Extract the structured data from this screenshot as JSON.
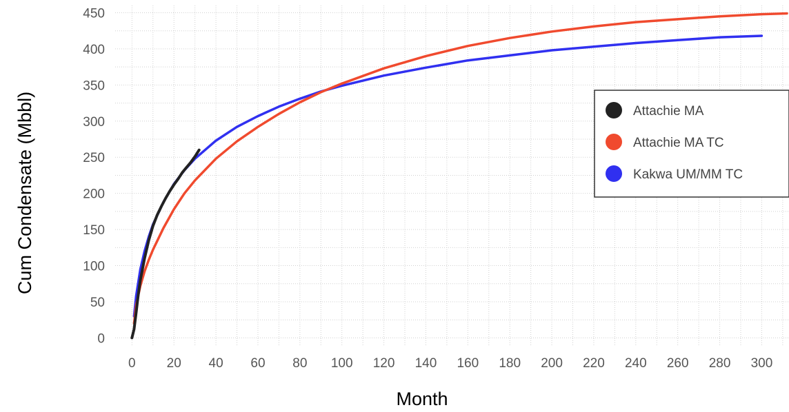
{
  "chart_data": {
    "type": "line",
    "xlabel": "Month",
    "ylabel": "Cum Condensate  (Mbbl)",
    "xlim": [
      -8,
      313
    ],
    "ylim": [
      -12,
      460
    ],
    "x_ticks": [
      0,
      20,
      40,
      60,
      80,
      100,
      120,
      140,
      160,
      180,
      200,
      220,
      240,
      260,
      280,
      300
    ],
    "y_ticks": [
      0,
      50,
      100,
      150,
      200,
      250,
      300,
      350,
      400,
      450
    ],
    "grid": true,
    "legend_position": "right",
    "series": [
      {
        "name": "Attachie MA",
        "color": "#222222",
        "x": [
          0,
          1,
          2,
          3,
          4,
          6,
          8,
          10,
          12,
          14,
          16,
          18,
          20,
          22,
          24,
          26,
          28,
          30,
          32
        ],
        "y": [
          0,
          12,
          35,
          60,
          80,
          110,
          135,
          155,
          170,
          182,
          193,
          203,
          212,
          220,
          229,
          236,
          243,
          251,
          260
        ]
      },
      {
        "name": "Attachie MA TC",
        "color": "#f04a2e",
        "x": [
          1,
          2,
          4,
          6,
          8,
          10,
          15,
          20,
          25,
          30,
          40,
          50,
          60,
          70,
          80,
          90,
          100,
          120,
          140,
          160,
          180,
          200,
          220,
          240,
          260,
          280,
          300,
          312
        ],
        "y": [
          20,
          45,
          72,
          92,
          108,
          122,
          152,
          178,
          200,
          218,
          248,
          272,
          292,
          310,
          326,
          340,
          352,
          373,
          390,
          404,
          415,
          424,
          431,
          437,
          441,
          445,
          448,
          449
        ]
      },
      {
        "name": "Kakwa UM/MM TC",
        "color": "#3030f0",
        "x": [
          1,
          2,
          4,
          6,
          8,
          10,
          15,
          20,
          25,
          30,
          40,
          50,
          60,
          70,
          80,
          90,
          100,
          120,
          140,
          160,
          180,
          200,
          220,
          240,
          260,
          280,
          300
        ],
        "y": [
          30,
          58,
          95,
          120,
          140,
          157,
          188,
          213,
          232,
          248,
          273,
          292,
          307,
          320,
          331,
          341,
          349,
          363,
          374,
          384,
          391,
          398,
          403,
          408,
          412,
          416,
          418
        ]
      }
    ]
  }
}
